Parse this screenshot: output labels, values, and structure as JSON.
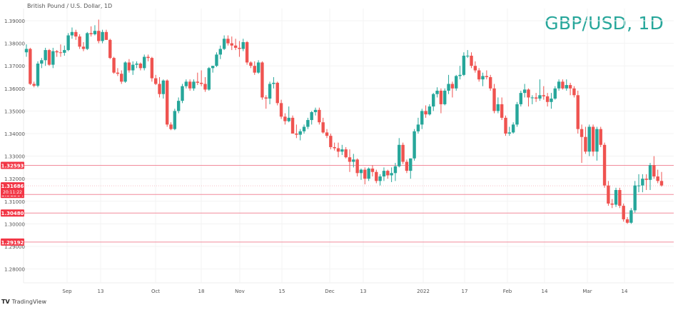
{
  "header": {
    "symbol_description": "British Pound / U.S. Dollar, 1D",
    "watermark": "GBP/USD, 1D"
  },
  "footer": {
    "logo_mark": "TV",
    "logo_text": "TradingView"
  },
  "colors": {
    "up": "#26a69a",
    "down": "#ef5350",
    "level_line": "#f28b9b",
    "label_bg": "#f23645",
    "grid": "#f3f3f3",
    "text": "#555555"
  },
  "chart_data": {
    "type": "candlestick",
    "title": "GBP/USD, 1D",
    "subtitle": "British Pound / U.S. Dollar, 1D",
    "xlabel": "",
    "ylabel": "",
    "y_ticks": [
      "1.39000",
      "1.38000",
      "1.37000",
      "1.36000",
      "1.35000",
      "1.34000",
      "1.33000",
      "1.32000",
      "1.31000",
      "1.30000",
      "1.29000",
      "1.28000"
    ],
    "ylim": [
      1.2765,
      1.3935
    ],
    "x_ticks": [
      {
        "label": "Sep",
        "x": 94
      },
      {
        "label": "13",
        "x": 141
      },
      {
        "label": "Oct",
        "x": 218
      },
      {
        "label": "18",
        "x": 282
      },
      {
        "label": "Nov",
        "x": 336
      },
      {
        "label": "15",
        "x": 395
      },
      {
        "label": "Dec",
        "x": 462
      },
      {
        "label": "13",
        "x": 509
      },
      {
        "label": "2022",
        "x": 593
      },
      {
        "label": "17",
        "x": 651
      },
      {
        "label": "Feb",
        "x": 711
      },
      {
        "label": "14",
        "x": 763
      },
      {
        "label": "Mar",
        "x": 823
      },
      {
        "label": "14",
        "x": 875
      }
    ],
    "horizontal_levels": [
      {
        "label": "1.32593",
        "value": 1.32593
      },
      {
        "label": "1.31304",
        "value": 1.31304
      },
      {
        "label": "1.30480",
        "value": 1.3048
      },
      {
        "label": "1.29192",
        "value": 1.29192
      }
    ],
    "current_price": {
      "label": "1.31686",
      "value": 1.31686,
      "countdown": "20:11:22"
    },
    "grid": true,
    "candles_ohlc": [
      [
        1.376,
        1.3795,
        1.374,
        1.3775
      ],
      [
        1.3775,
        1.378,
        1.3615,
        1.362
      ],
      [
        1.362,
        1.363,
        1.3605,
        1.3612
      ],
      [
        1.3612,
        1.372,
        1.3605,
        1.371
      ],
      [
        1.371,
        1.3735,
        1.369,
        1.3725
      ],
      [
        1.3725,
        1.378,
        1.37,
        1.377
      ],
      [
        1.377,
        1.3775,
        1.37,
        1.3705
      ],
      [
        1.3705,
        1.378,
        1.369,
        1.3765
      ],
      [
        1.3765,
        1.377,
        1.374,
        1.376
      ],
      [
        1.376,
        1.3795,
        1.374,
        1.3758
      ],
      [
        1.3758,
        1.379,
        1.3745,
        1.377
      ],
      [
        1.377,
        1.3845,
        1.3765,
        1.3835
      ],
      [
        1.3835,
        1.387,
        1.382,
        1.385
      ],
      [
        1.385,
        1.386,
        1.3815,
        1.383
      ],
      [
        1.383,
        1.384,
        1.3775,
        1.3785
      ],
      [
        1.3785,
        1.3805,
        1.3765,
        1.3775
      ],
      [
        1.3775,
        1.385,
        1.377,
        1.3845
      ],
      [
        1.3845,
        1.3875,
        1.383,
        1.384
      ],
      [
        1.384,
        1.388,
        1.3835,
        1.3855
      ],
      [
        1.3855,
        1.3905,
        1.38,
        1.381
      ],
      [
        1.381,
        1.386,
        1.38,
        1.385
      ],
      [
        1.385,
        1.386,
        1.3815,
        1.3815
      ],
      [
        1.3815,
        1.382,
        1.373,
        1.3735
      ],
      [
        1.3735,
        1.374,
        1.3665,
        1.367
      ],
      [
        1.367,
        1.369,
        1.3655,
        1.3665
      ],
      [
        1.3665,
        1.368,
        1.362,
        1.363
      ],
      [
        1.363,
        1.372,
        1.3625,
        1.3715
      ],
      [
        1.3715,
        1.373,
        1.367,
        1.368
      ],
      [
        1.368,
        1.372,
        1.366,
        1.3705
      ],
      [
        1.3705,
        1.372,
        1.369,
        1.371
      ],
      [
        1.371,
        1.3715,
        1.368,
        1.369
      ],
      [
        1.369,
        1.375,
        1.368,
        1.374
      ],
      [
        1.374,
        1.375,
        1.372,
        1.3735
      ],
      [
        1.3735,
        1.374,
        1.363,
        1.3645
      ],
      [
        1.3645,
        1.366,
        1.3615,
        1.362
      ],
      [
        1.362,
        1.365,
        1.356,
        1.3575
      ],
      [
        1.3575,
        1.364,
        1.3555,
        1.3635
      ],
      [
        1.3635,
        1.364,
        1.343,
        1.344
      ],
      [
        1.344,
        1.345,
        1.3415,
        1.342
      ],
      [
        1.342,
        1.351,
        1.3415,
        1.35
      ],
      [
        1.35,
        1.356,
        1.349,
        1.3545
      ],
      [
        1.3545,
        1.362,
        1.3535,
        1.361
      ],
      [
        1.361,
        1.364,
        1.36,
        1.363
      ],
      [
        1.363,
        1.364,
        1.359,
        1.36
      ],
      [
        1.36,
        1.364,
        1.359,
        1.363
      ],
      [
        1.363,
        1.367,
        1.3615,
        1.3625
      ],
      [
        1.3625,
        1.368,
        1.361,
        1.362
      ],
      [
        1.362,
        1.365,
        1.3585,
        1.3595
      ],
      [
        1.3595,
        1.3695,
        1.359,
        1.369
      ],
      [
        1.369,
        1.37,
        1.367,
        1.37
      ],
      [
        1.37,
        1.376,
        1.3695,
        1.375
      ],
      [
        1.375,
        1.379,
        1.373,
        1.3775
      ],
      [
        1.3775,
        1.3835,
        1.377,
        1.382
      ],
      [
        1.382,
        1.3835,
        1.379,
        1.38
      ],
      [
        1.38,
        1.383,
        1.377,
        1.379
      ],
      [
        1.379,
        1.382,
        1.377,
        1.378
      ],
      [
        1.378,
        1.381,
        1.374,
        1.3775
      ],
      [
        1.3775,
        1.382,
        1.3765,
        1.3805
      ],
      [
        1.3805,
        1.381,
        1.3705,
        1.3715
      ],
      [
        1.3715,
        1.372,
        1.369,
        1.37
      ],
      [
        1.37,
        1.372,
        1.366,
        1.367
      ],
      [
        1.367,
        1.3725,
        1.3665,
        1.3715
      ],
      [
        1.3715,
        1.372,
        1.355,
        1.356
      ],
      [
        1.356,
        1.357,
        1.351,
        1.3555
      ],
      [
        1.3555,
        1.363,
        1.353,
        1.362
      ],
      [
        1.362,
        1.365,
        1.36,
        1.3625
      ],
      [
        1.3625,
        1.363,
        1.3525,
        1.3535
      ],
      [
        1.3535,
        1.355,
        1.3465,
        1.3475
      ],
      [
        1.3475,
        1.349,
        1.344,
        1.3455
      ],
      [
        1.3455,
        1.352,
        1.345,
        1.347
      ],
      [
        1.347,
        1.348,
        1.342,
        1.34
      ],
      [
        1.34,
        1.344,
        1.338,
        1.3395
      ],
      [
        1.3395,
        1.342,
        1.337,
        1.341
      ],
      [
        1.341,
        1.344,
        1.34,
        1.343
      ],
      [
        1.343,
        1.347,
        1.342,
        1.346
      ],
      [
        1.346,
        1.35,
        1.344,
        1.3495
      ],
      [
        1.3495,
        1.3515,
        1.348,
        1.3505
      ],
      [
        1.3505,
        1.3515,
        1.344,
        1.345
      ],
      [
        1.345,
        1.347,
        1.34,
        1.3405
      ],
      [
        1.3405,
        1.342,
        1.338,
        1.339
      ],
      [
        1.339,
        1.34,
        1.333,
        1.334
      ],
      [
        1.334,
        1.336,
        1.3325,
        1.3335
      ],
      [
        1.3335,
        1.336,
        1.3295,
        1.332
      ],
      [
        1.332,
        1.335,
        1.3305,
        1.333
      ],
      [
        1.333,
        1.334,
        1.329,
        1.3295
      ],
      [
        1.3295,
        1.333,
        1.323,
        1.3275
      ],
      [
        1.3275,
        1.331,
        1.325,
        1.3285
      ],
      [
        1.3285,
        1.329,
        1.321,
        1.3225
      ],
      [
        1.3225,
        1.3245,
        1.3195,
        1.324
      ],
      [
        1.324,
        1.325,
        1.3175,
        1.32
      ],
      [
        1.32,
        1.325,
        1.319,
        1.3245
      ],
      [
        1.3245,
        1.326,
        1.321,
        1.323
      ],
      [
        1.323,
        1.324,
        1.318,
        1.319
      ],
      [
        1.319,
        1.322,
        1.317,
        1.321
      ],
      [
        1.321,
        1.325,
        1.319,
        1.3235
      ],
      [
        1.3235,
        1.324,
        1.32,
        1.3215
      ],
      [
        1.3215,
        1.325,
        1.3185,
        1.3225
      ],
      [
        1.3225,
        1.327,
        1.319,
        1.3255
      ],
      [
        1.3255,
        1.338,
        1.325,
        1.335
      ],
      [
        1.335,
        1.336,
        1.3265,
        1.3275
      ],
      [
        1.3275,
        1.3285,
        1.3225,
        1.3235
      ],
      [
        1.3235,
        1.329,
        1.32,
        1.329
      ],
      [
        1.329,
        1.342,
        1.328,
        1.341
      ],
      [
        1.341,
        1.347,
        1.34,
        1.344
      ],
      [
        1.344,
        1.351,
        1.342,
        1.35
      ],
      [
        1.35,
        1.3525,
        1.347,
        1.3485
      ],
      [
        1.3485,
        1.353,
        1.348,
        1.352
      ],
      [
        1.352,
        1.358,
        1.35,
        1.3575
      ],
      [
        1.3575,
        1.3605,
        1.356,
        1.359
      ],
      [
        1.359,
        1.36,
        1.349,
        1.353
      ],
      [
        1.353,
        1.36,
        1.3525,
        1.359
      ],
      [
        1.359,
        1.366,
        1.3575,
        1.362
      ],
      [
        1.362,
        1.363,
        1.356,
        1.36
      ],
      [
        1.36,
        1.366,
        1.359,
        1.3655
      ],
      [
        1.3655,
        1.37,
        1.364,
        1.366
      ],
      [
        1.366,
        1.376,
        1.3655,
        1.3745
      ],
      [
        1.3745,
        1.377,
        1.3735,
        1.3745
      ],
      [
        1.3745,
        1.376,
        1.369,
        1.37
      ],
      [
        1.37,
        1.372,
        1.367,
        1.368
      ],
      [
        1.368,
        1.369,
        1.363,
        1.364
      ],
      [
        1.364,
        1.367,
        1.361,
        1.3655
      ],
      [
        1.3655,
        1.368,
        1.364,
        1.365
      ],
      [
        1.365,
        1.366,
        1.359,
        1.36
      ],
      [
        1.36,
        1.362,
        1.349,
        1.35
      ],
      [
        1.35,
        1.356,
        1.349,
        1.353
      ],
      [
        1.353,
        1.356,
        1.346,
        1.347
      ],
      [
        1.347,
        1.348,
        1.339,
        1.34
      ],
      [
        1.34,
        1.343,
        1.339,
        1.3405
      ],
      [
        1.3405,
        1.345,
        1.34,
        1.344
      ],
      [
        1.344,
        1.354,
        1.343,
        1.353
      ],
      [
        1.353,
        1.359,
        1.352,
        1.358
      ],
      [
        1.358,
        1.362,
        1.356,
        1.3595
      ],
      [
        1.3595,
        1.36,
        1.352,
        1.356
      ],
      [
        1.356,
        1.357,
        1.353,
        1.356
      ],
      [
        1.356,
        1.358,
        1.354,
        1.3555
      ],
      [
        1.3555,
        1.364,
        1.3545,
        1.357
      ],
      [
        1.357,
        1.361,
        1.355,
        1.3565
      ],
      [
        1.3565,
        1.358,
        1.352,
        1.354
      ],
      [
        1.354,
        1.358,
        1.351,
        1.3555
      ],
      [
        1.3555,
        1.361,
        1.355,
        1.36
      ],
      [
        1.36,
        1.364,
        1.359,
        1.363
      ],
      [
        1.363,
        1.364,
        1.3595,
        1.36
      ],
      [
        1.36,
        1.364,
        1.359,
        1.3615
      ],
      [
        1.3615,
        1.3625,
        1.357,
        1.36
      ],
      [
        1.36,
        1.361,
        1.356,
        1.357
      ],
      [
        1.357,
        1.359,
        1.34,
        1.342
      ],
      [
        1.342,
        1.344,
        1.327,
        1.3385
      ],
      [
        1.3385,
        1.343,
        1.331,
        1.332
      ],
      [
        1.332,
        1.344,
        1.33,
        1.343
      ],
      [
        1.343,
        1.344,
        1.33,
        1.332
      ],
      [
        1.332,
        1.343,
        1.328,
        1.342
      ],
      [
        1.342,
        1.343,
        1.334,
        1.335
      ],
      [
        1.335,
        1.336,
        1.316,
        1.317
      ],
      [
        1.317,
        1.319,
        1.308,
        1.309
      ],
      [
        1.309,
        1.311,
        1.307,
        1.3085
      ],
      [
        1.3085,
        1.316,
        1.3075,
        1.315
      ],
      [
        1.315,
        1.316,
        1.307,
        1.308
      ],
      [
        1.308,
        1.309,
        1.301,
        1.302
      ],
      [
        1.302,
        1.303,
        1.3,
        1.3005
      ],
      [
        1.3005,
        1.307,
        1.3,
        1.306
      ],
      [
        1.306,
        1.319,
        1.305,
        1.317
      ],
      [
        1.317,
        1.322,
        1.314,
        1.317
      ],
      [
        1.317,
        1.322,
        1.314,
        1.32
      ],
      [
        1.32,
        1.322,
        1.315,
        1.3195
      ],
      [
        1.3195,
        1.327,
        1.315,
        1.326
      ],
      [
        1.326,
        1.33,
        1.32,
        1.321
      ],
      [
        1.321,
        1.324,
        1.318,
        1.319
      ],
      [
        1.319,
        1.323,
        1.3165,
        1.317
      ]
    ]
  }
}
